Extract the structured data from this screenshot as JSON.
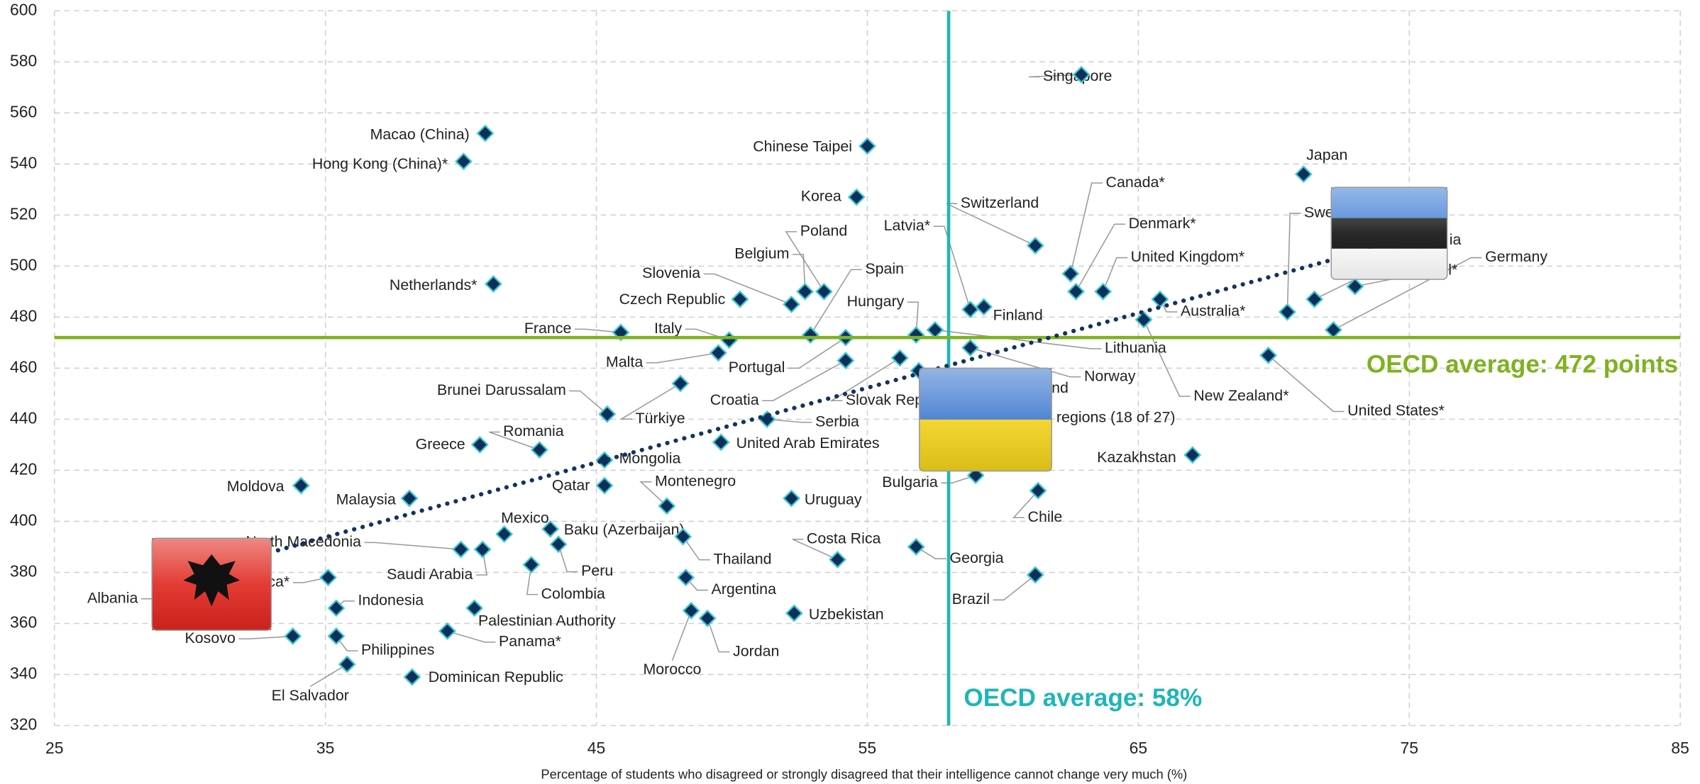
{
  "chart_data": {
    "type": "scatter",
    "xlabel": "Percentage of students who disagreed or strongly disagreed that their intelligence cannot change very much (%)",
    "xlim": [
      25,
      85
    ],
    "xticks": [
      25,
      35,
      45,
      55,
      65,
      75,
      85
    ],
    "ylim": [
      320,
      600
    ],
    "yticks": [
      320,
      340,
      360,
      380,
      400,
      420,
      440,
      460,
      480,
      500,
      520,
      540,
      560,
      580,
      600
    ],
    "grid": true,
    "color": "#0d2f5a",
    "ref_x": 58,
    "ref_x_label": "OECD average: 58%",
    "ref_x_color": "#1fb5b8",
    "ref_y": 472,
    "ref_y_label": "OECD average: 472 points",
    "ref_y_color": "#7fb21f",
    "trend": {
      "x": [
        32,
        73.7
      ],
      "values": [
        385,
        507
      ],
      "color": "#13335e"
    },
    "labels": [
      "Singapore",
      "Macao (China)",
      "Hong Kong (China)*",
      "Chinese Taipei",
      "Korea",
      "Japan",
      "Switzerland",
      "Canada*",
      "Denmark*",
      "United Kingdom*",
      "Netherlands*",
      "Latvia*",
      "Finland",
      "Poland",
      "Belgium",
      "Slovenia",
      "Czech Republic",
      "Spain",
      "Hungary",
      "Lithuania",
      "France",
      "Italy",
      "Malta",
      "Portugal",
      "Croatia",
      "Norway",
      "Slovak Rep",
      "an regions (18 of 27)",
      "nd",
      "Germany",
      "Sweden",
      "ia",
      "l*",
      "Australia*",
      "New Zealand*",
      "United States*",
      "Kazakhstan",
      "Chile",
      "Bulgaria",
      "Georgia",
      "Brazil",
      "Brunei Darussalam",
      "Türkiye",
      "Serbia",
      "United Arab Emirates",
      "Romania",
      "Greece",
      "Mongolia",
      "Qatar",
      "Moldova",
      "Malaysia",
      "Montenegro",
      "Uruguay",
      "Mexico",
      "Baku (Azerbaijan)",
      "Peru",
      "North Macedonia",
      "Saudi Arabia",
      "Colombia",
      "Thailand",
      "Argentina",
      "Costa Rica",
      "Uzbekistan",
      "Morocco",
      "Jordan",
      "ca*",
      "Indonesia",
      "Palestinian Authority",
      "Panama*",
      "Kosovo",
      "Philippines",
      "El Salvador",
      "Dominican Republic",
      "Albania"
    ],
    "x": [
      62.9,
      40.9,
      40.1,
      55,
      54.6,
      71.1,
      61.2,
      62.5,
      62.7,
      63.7,
      41.2,
      58.8,
      59.3,
      53.4,
      52.7,
      52.2,
      50.3,
      52.9,
      56.8,
      57.5,
      45.9,
      49.9,
      49.5,
      54.2,
      54.2,
      58.8,
      56.2,
      56.9,
      59.5,
      72.2,
      70.5,
      71.5,
      73,
      65.8,
      65.2,
      69.8,
      67,
      61.3,
      59,
      56.8,
      61.2,
      45.4,
      48.1,
      51.3,
      49.6,
      42.9,
      40.7,
      45.3,
      45.3,
      34.1,
      38.1,
      47.6,
      52.2,
      41.6,
      43.3,
      43.6,
      40,
      40.8,
      42.6,
      48.2,
      48.3,
      53.9,
      52.3,
      48.5,
      49.1,
      35.1,
      35.4,
      40.5,
      39.5,
      33.8,
      35.4,
      35.8,
      38.2,
      31
    ],
    "values": [
      575,
      552,
      541,
      547,
      527,
      536,
      508,
      497,
      490,
      490,
      493,
      483,
      484,
      490,
      490,
      485,
      487,
      473,
      473,
      475,
      474,
      471,
      466,
      472,
      463,
      468,
      464,
      459,
      448,
      475,
      482,
      487,
      492,
      487,
      479,
      465,
      426,
      412,
      418,
      390,
      379,
      442,
      454,
      440,
      431,
      428,
      430,
      424,
      414,
      414,
      409,
      406,
      409,
      395,
      397,
      391,
      389,
      389,
      383,
      394,
      378,
      385,
      364,
      365,
      362,
      378,
      366,
      366,
      357,
      355,
      355,
      344,
      339,
      368
    ]
  }
}
